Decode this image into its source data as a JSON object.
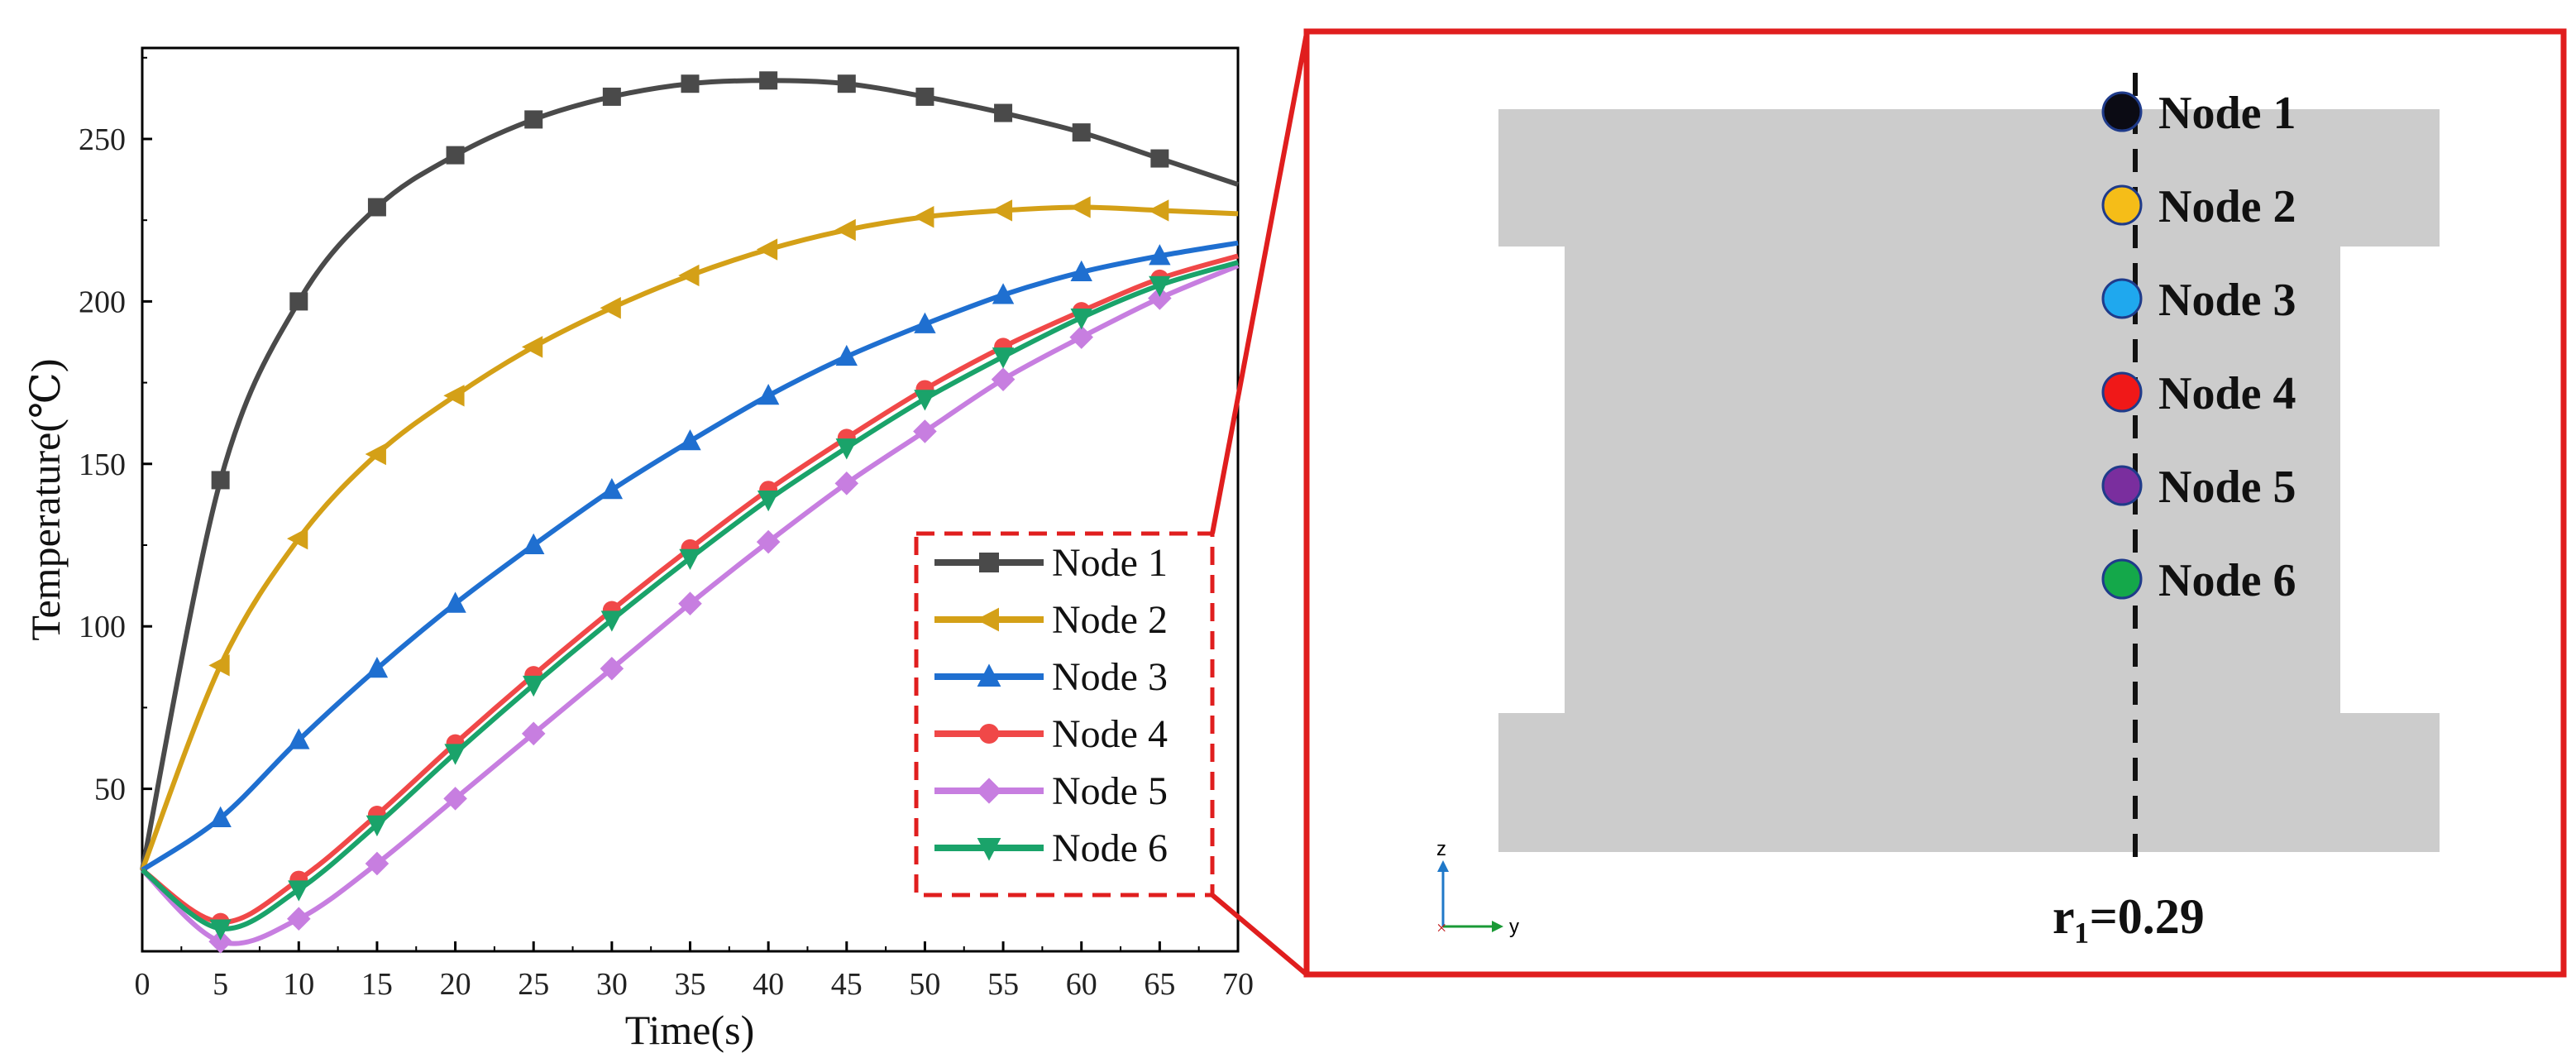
{
  "chart_data": {
    "type": "line",
    "xlabel": "Time(s)",
    "ylabel": "Temperature(℃)",
    "xlim": [
      0,
      70
    ],
    "ylim": [
      0,
      278
    ],
    "xticks": [
      0,
      5,
      10,
      15,
      20,
      25,
      30,
      35,
      40,
      45,
      50,
      55,
      60,
      65,
      70
    ],
    "yticks": [
      50,
      100,
      150,
      200,
      250
    ],
    "legend_position": "bottom-right",
    "x": [
      0,
      5,
      10,
      15,
      20,
      25,
      30,
      35,
      40,
      45,
      50,
      55,
      60,
      65,
      70
    ],
    "series": [
      {
        "name": "Node 1",
        "color": "#4a4a4a",
        "marker": "square",
        "values": [
          25,
          145,
          200,
          229,
          245,
          256,
          263,
          267,
          268,
          267,
          263,
          258,
          252,
          244,
          236
        ]
      },
      {
        "name": "Node 2",
        "color": "#d4a017",
        "marker": "triangle-left",
        "values": [
          25,
          88,
          127,
          153,
          171,
          186,
          198,
          208,
          216,
          222,
          226,
          228,
          229,
          228,
          227
        ]
      },
      {
        "name": "Node 3",
        "color": "#1f6fd0",
        "marker": "triangle-up",
        "values": [
          25,
          41,
          65,
          87,
          107,
          125,
          142,
          157,
          171,
          183,
          193,
          202,
          209,
          214,
          218
        ]
      },
      {
        "name": "Node 4",
        "color": "#f04848",
        "marker": "circle",
        "values": [
          25,
          9,
          22,
          42,
          64,
          85,
          105,
          124,
          142,
          158,
          173,
          186,
          197,
          207,
          214
        ]
      },
      {
        "name": "Node 5",
        "color": "#c77ee0",
        "marker": "diamond",
        "values": [
          25,
          3,
          10,
          27,
          47,
          67,
          87,
          107,
          126,
          144,
          160,
          176,
          189,
          201,
          211
        ]
      },
      {
        "name": "Node 6",
        "color": "#1aa36a",
        "marker": "triangle-down",
        "values": [
          25,
          7,
          19,
          39,
          61,
          82,
          102,
          121,
          139,
          155,
          170,
          183,
          195,
          205,
          212
        ]
      }
    ]
  },
  "schematic": {
    "nodes": [
      {
        "label": "Node 1",
        "color": "#0b0b14"
      },
      {
        "label": "Node 2",
        "color": "#f5bd18"
      },
      {
        "label": "Node 3",
        "color": "#1fa8ee"
      },
      {
        "label": "Node 4",
        "color": "#f01818"
      },
      {
        "label": "Node 5",
        "color": "#7a2e9e"
      },
      {
        "label": "Node 6",
        "color": "#14a84a"
      }
    ],
    "radius_label": "r₁=0.29",
    "axis_z": "z",
    "axis_y": "y"
  }
}
